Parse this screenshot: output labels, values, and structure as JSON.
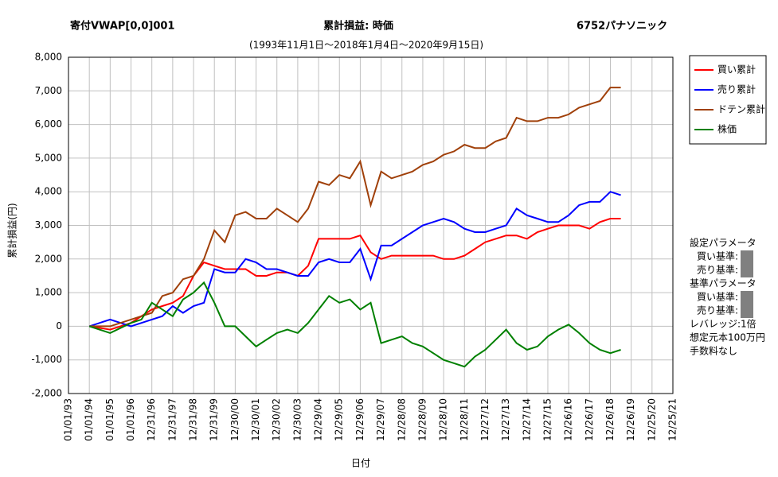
{
  "chart_data": {
    "type": "line",
    "title": "累計損益: 時価",
    "strategy": "寄付VWAP[0,0]001",
    "symbol": "6752パナソニック",
    "subtitle": "(1993年11月1日～2018年1月4日～2020年9月15日)",
    "y_label": "累計損益(円)",
    "x_label": "日付",
    "grid": true,
    "legend": "right",
    "xlim": [
      1993,
      2022
    ],
    "ylim": [
      -2000,
      8000
    ],
    "yticks": [
      {
        "value": 8000,
        "label": "8,000"
      },
      {
        "value": 7000,
        "label": "7,000"
      },
      {
        "value": 6000,
        "label": "6,000"
      },
      {
        "value": 5000,
        "label": "5,000"
      },
      {
        "value": 4000,
        "label": "4,000"
      },
      {
        "value": 3000,
        "label": "3,000"
      },
      {
        "value": 2000,
        "label": "2,000"
      },
      {
        "value": 1000,
        "label": "1,000"
      },
      0,
      {
        "value": -1000,
        "label": "-1,000"
      },
      {
        "value": -2000,
        "label": "-2,000"
      }
    ],
    "xticks": [
      {
        "value": 1993,
        "label": "01/01/93"
      },
      {
        "value": 1994,
        "label": "01/01/94"
      },
      {
        "value": 1995,
        "label": "01/01/95"
      },
      {
        "value": 1996,
        "label": "01/01/96"
      },
      {
        "value": 1997,
        "label": "12/31/96"
      },
      {
        "value": 1998,
        "label": "12/31/97"
      },
      {
        "value": 1999,
        "label": "12/31/98"
      },
      {
        "value": 2000,
        "label": "12/31/99"
      },
      {
        "value": 2001,
        "label": "12/30/00"
      },
      {
        "value": 2002,
        "label": "12/30/01"
      },
      {
        "value": 2003,
        "label": "12/30/02"
      },
      {
        "value": 2004,
        "label": "12/30/03"
      },
      {
        "value": 2005,
        "label": "12/29/04"
      },
      {
        "value": 2006,
        "label": "12/29/05"
      },
      {
        "value": 2007,
        "label": "12/29/06"
      },
      {
        "value": 2008,
        "label": "12/29/07"
      },
      {
        "value": 2009,
        "label": "12/28/08"
      },
      {
        "value": 2010,
        "label": "12/28/09"
      },
      {
        "value": 2011,
        "label": "12/28/10"
      },
      {
        "value": 2012,
        "label": "12/28/11"
      },
      {
        "value": 2013,
        "label": "12/27/12"
      },
      {
        "value": 2014,
        "label": "12/27/13"
      },
      {
        "value": 2015,
        "label": "12/27/14"
      },
      {
        "value": 2016,
        "label": "12/27/15"
      },
      {
        "value": 2017,
        "label": "12/26/16"
      },
      {
        "value": 2018,
        "label": "12/26/17"
      },
      {
        "value": 2019,
        "label": "12/26/18"
      },
      {
        "value": 2020,
        "label": "12/26/19"
      },
      {
        "value": 2021,
        "label": "12/25/20"
      },
      {
        "value": 2022,
        "label": "12/25/21"
      }
    ],
    "x": [
      1994,
      1995,
      1996,
      1996.5,
      1997,
      1997.5,
      1998,
      1998.5,
      1999,
      1999.5,
      2000,
      2000.5,
      2001,
      2001.5,
      2002,
      2002.5,
      2003,
      2003.5,
      2004,
      2004.5,
      2005,
      2005.5,
      2006,
      2006.5,
      2007,
      2007.5,
      2008,
      2008.5,
      2009,
      2009.5,
      2010,
      2010.5,
      2011,
      2011.5,
      2012,
      2012.5,
      2013,
      2013.5,
      2014,
      2014.5,
      2015,
      2015.5,
      2016,
      2016.5,
      2017,
      2017.5,
      2018,
      2018.5,
      2019,
      2019.5
    ],
    "series": [
      {
        "name": "買い累計",
        "color": "#ff0000",
        "values": [
          0,
          -100,
          100,
          300,
          500,
          600,
          700,
          900,
          1500,
          1900,
          1800,
          1700,
          1700,
          1700,
          1500,
          1500,
          1600,
          1600,
          1500,
          1800,
          2600,
          2600,
          2600,
          2600,
          2700,
          2200,
          2000,
          2100,
          2100,
          2100,
          2100,
          2100,
          2000,
          2000,
          2100,
          2300,
          2500,
          2600,
          2700,
          2700,
          2600,
          2800,
          2900,
          3000,
          3000,
          3000,
          2900,
          3100,
          3200,
          3200
        ]
      },
      {
        "name": "売り累計",
        "color": "#0000ff",
        "values": [
          0,
          200,
          0,
          100,
          200,
          300,
          600,
          400,
          600,
          700,
          1700,
          1600,
          1600,
          2000,
          1900,
          1700,
          1700,
          1600,
          1500,
          1500,
          1900,
          2000,
          1900,
          1900,
          2300,
          1400,
          2400,
          2400,
          2600,
          2800,
          3000,
          3100,
          3200,
          3100,
          2900,
          2800,
          2800,
          2900,
          3000,
          3500,
          3300,
          3200,
          3100,
          3100,
          3300,
          3600,
          3700,
          3700,
          4000,
          3900
        ]
      },
      {
        "name": "ドテン累計",
        "color": "#a0400a",
        "values": [
          0,
          0,
          200,
          300,
          400,
          900,
          1000,
          1400,
          1500,
          2000,
          2850,
          2500,
          3300,
          3400,
          3200,
          3200,
          3500,
          3300,
          3100,
          3500,
          4300,
          4200,
          4500,
          4400,
          4900,
          3600,
          4600,
          4400,
          4500,
          4600,
          4800,
          4900,
          5100,
          5200,
          5400,
          5300,
          5300,
          5500,
          5600,
          6200,
          6100,
          6100,
          6200,
          6200,
          6300,
          6500,
          6600,
          6700,
          7100,
          7100
        ]
      },
      {
        "name": "株価",
        "color": "#008000",
        "values": [
          0,
          -200,
          100,
          200,
          700,
          500,
          300,
          800,
          1000,
          1300,
          700,
          0,
          0,
          -300,
          -600,
          -400,
          -200,
          -100,
          -200,
          100,
          500,
          900,
          700,
          800,
          500,
          700,
          -500,
          -400,
          -300,
          -500,
          -600,
          -800,
          -1000,
          -1100,
          -1200,
          -900,
          -700,
          -400,
          -100,
          -500,
          -700,
          -600,
          -300,
          -100,
          50,
          -200,
          -500,
          -700,
          -800,
          -700
        ]
      }
    ],
    "panel": [
      "設定パラメータ",
      "買い基準:",
      "売り基準:",
      "基準パラメータ",
      "買い基準:",
      "売り基準:",
      "レバレッジ:1倍",
      "想定元本100万円",
      "手数料なし"
    ]
  }
}
